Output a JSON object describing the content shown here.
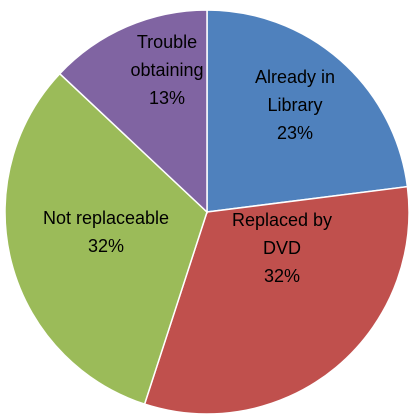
{
  "chart_data": {
    "type": "pie",
    "title": "",
    "legend": "none",
    "slices": [
      {
        "label_lines": [
          "Already in",
          "Library"
        ],
        "percent_label": "23%",
        "value": 23,
        "color": "#4F81BD"
      },
      {
        "label_lines": [
          "Replaced by",
          "DVD"
        ],
        "percent_label": "32%",
        "value": 32,
        "color": "#C0504D"
      },
      {
        "label_lines": [
          "Not replaceable"
        ],
        "percent_label": "32%",
        "value": 32,
        "color": "#9BBB59"
      },
      {
        "label_lines": [
          "Trouble",
          "obtaining"
        ],
        "percent_label": "13%",
        "value": 13,
        "color": "#8064A2"
      }
    ]
  }
}
